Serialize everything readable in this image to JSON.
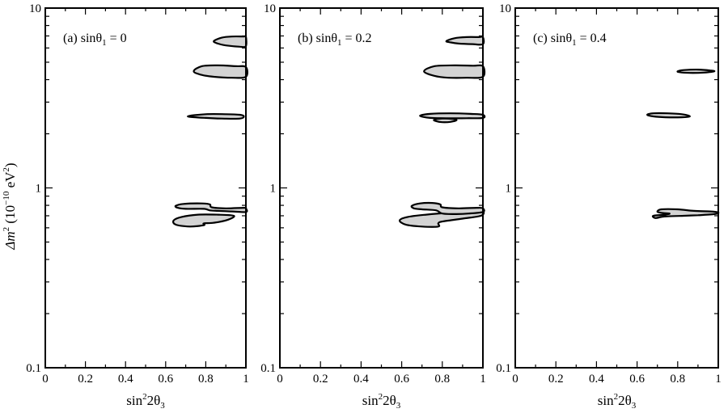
{
  "chart_data": {
    "type": "contour",
    "layout": "three panels side by side sharing y-axis",
    "y_axis": {
      "label_parts": [
        "Δm",
        "2",
        " (10",
        "−10",
        " eV",
        "2",
        ")"
      ],
      "scale": "log",
      "ylim": [
        0.1,
        10
      ],
      "tick_labels": [
        "10",
        "1",
        "0.1"
      ],
      "tick_values": [
        10,
        1,
        0.1
      ]
    },
    "x_axis": {
      "label_parts": [
        "sin",
        "2",
        "2θ",
        "3"
      ],
      "xlim": [
        0,
        1
      ],
      "tick_labels": [
        "0",
        "0.2",
        "0.4",
        "0.6",
        "0.8",
        "1"
      ],
      "tick_values": [
        0,
        0.2,
        0.4,
        0.6,
        0.8,
        1
      ]
    },
    "region_fill": "#d3d3d3",
    "region_stroke": "#000000",
    "panels": [
      {
        "label_prefix": "(a)  sin",
        "label_sub": "θ",
        "label_index": "1",
        "label_suffix": " = 0",
        "regions": [
          [
            [
              0.84,
              6.55
            ],
            [
              0.88,
              6.85
            ],
            [
              0.93,
              6.95
            ],
            [
              0.99,
              6.95
            ],
            [
              1.0,
              6.95
            ],
            [
              1.0,
              6.15
            ],
            [
              0.97,
              6.1
            ],
            [
              0.9,
              6.2
            ],
            [
              0.86,
              6.35
            ]
          ],
          [
            [
              0.74,
              4.45
            ],
            [
              0.78,
              4.75
            ],
            [
              0.86,
              4.8
            ],
            [
              0.95,
              4.75
            ],
            [
              1.0,
              4.7
            ],
            [
              1.0,
              4.15
            ],
            [
              0.93,
              4.1
            ],
            [
              0.84,
              4.15
            ],
            [
              0.78,
              4.25
            ]
          ],
          [
            [
              0.71,
              2.5
            ],
            [
              0.8,
              2.57
            ],
            [
              0.9,
              2.57
            ],
            [
              0.97,
              2.55
            ],
            [
              0.99,
              2.5
            ],
            [
              0.97,
              2.43
            ],
            [
              0.88,
              2.43
            ],
            [
              0.8,
              2.45
            ]
          ],
          [
            [
              0.64,
              0.66
            ],
            [
              0.68,
              0.69
            ],
            [
              0.76,
              0.71
            ],
            [
              0.86,
              0.71
            ],
            [
              0.94,
              0.7
            ],
            [
              0.91,
              0.665
            ],
            [
              0.84,
              0.64
            ],
            [
              0.79,
              0.635
            ],
            [
              0.79,
              0.62
            ],
            [
              0.72,
              0.61
            ],
            [
              0.65,
              0.625
            ]
          ],
          [
            [
              0.65,
              0.795
            ],
            [
              0.69,
              0.815
            ],
            [
              0.78,
              0.82
            ],
            [
              0.82,
              0.81
            ],
            [
              0.83,
              0.78
            ],
            [
              0.9,
              0.77
            ],
            [
              0.99,
              0.775
            ],
            [
              1.0,
              0.77
            ],
            [
              1.0,
              0.735
            ],
            [
              0.93,
              0.74
            ],
            [
              0.86,
              0.745
            ],
            [
              0.82,
              0.75
            ],
            [
              0.79,
              0.765
            ],
            [
              0.7,
              0.765
            ],
            [
              0.66,
              0.775
            ]
          ]
        ]
      },
      {
        "label_prefix": "(b)  sin",
        "label_sub": "θ",
        "label_index": "1",
        "label_suffix": " = 0.2",
        "regions": [
          [
            [
              0.82,
              6.55
            ],
            [
              0.86,
              6.8
            ],
            [
              0.92,
              6.9
            ],
            [
              0.98,
              6.9
            ],
            [
              1.0,
              6.9
            ],
            [
              1.0,
              6.3
            ],
            [
              0.95,
              6.3
            ],
            [
              0.88,
              6.35
            ],
            [
              0.84,
              6.45
            ]
          ],
          [
            [
              0.71,
              4.45
            ],
            [
              0.76,
              4.75
            ],
            [
              0.86,
              4.8
            ],
            [
              0.95,
              4.78
            ],
            [
              1.0,
              4.75
            ],
            [
              1.0,
              4.15
            ],
            [
              0.92,
              4.1
            ],
            [
              0.83,
              4.1
            ],
            [
              0.76,
              4.2
            ]
          ],
          [
            [
              0.69,
              2.52
            ],
            [
              0.74,
              2.58
            ],
            [
              0.84,
              2.6
            ],
            [
              0.94,
              2.58
            ],
            [
              1.0,
              2.55
            ],
            [
              1.0,
              2.45
            ],
            [
              0.92,
              2.44
            ],
            [
              0.82,
              2.44
            ],
            [
              0.74,
              2.45
            ]
          ],
          [
            [
              0.76,
              2.39
            ],
            [
              0.8,
              2.43
            ],
            [
              0.85,
              2.42
            ],
            [
              0.87,
              2.38
            ],
            [
              0.84,
              2.33
            ],
            [
              0.8,
              2.32
            ],
            [
              0.77,
              2.35
            ]
          ],
          [
            [
              0.59,
              0.66
            ],
            [
              0.63,
              0.69
            ],
            [
              0.72,
              0.71
            ],
            [
              0.85,
              0.73
            ],
            [
              0.95,
              0.74
            ],
            [
              1.0,
              0.74
            ],
            [
              0.99,
              0.7
            ],
            [
              0.9,
              0.675
            ],
            [
              0.8,
              0.65
            ],
            [
              0.78,
              0.635
            ],
            [
              0.78,
              0.61
            ],
            [
              0.7,
              0.61
            ],
            [
              0.62,
              0.625
            ]
          ],
          [
            [
              0.65,
              0.795
            ],
            [
              0.69,
              0.82
            ],
            [
              0.75,
              0.825
            ],
            [
              0.79,
              0.81
            ],
            [
              0.8,
              0.78
            ],
            [
              0.88,
              0.77
            ],
            [
              0.97,
              0.775
            ],
            [
              1.0,
              0.77
            ],
            [
              1.0,
              0.735
            ],
            [
              0.93,
              0.72
            ],
            [
              0.87,
              0.715
            ],
            [
              0.8,
              0.72
            ],
            [
              0.77,
              0.75
            ],
            [
              0.7,
              0.76
            ],
            [
              0.66,
              0.77
            ]
          ]
        ]
      },
      {
        "label_prefix": "(c)  sin",
        "label_sub": "θ",
        "label_index": "1",
        "label_suffix": " = 0.4",
        "regions": [
          [
            [
              0.8,
              4.45
            ],
            [
              0.83,
              4.52
            ],
            [
              0.9,
              4.55
            ],
            [
              0.96,
              4.5
            ],
            [
              0.98,
              4.45
            ],
            [
              0.93,
              4.38
            ],
            [
              0.86,
              4.36
            ],
            [
              0.81,
              4.4
            ]
          ],
          [
            [
              0.65,
              2.55
            ],
            [
              0.68,
              2.6
            ],
            [
              0.75,
              2.6
            ],
            [
              0.82,
              2.57
            ],
            [
              0.86,
              2.5
            ],
            [
              0.82,
              2.47
            ],
            [
              0.74,
              2.47
            ],
            [
              0.68,
              2.5
            ]
          ],
          [
            [
              0.7,
              0.74
            ],
            [
              0.72,
              0.76
            ],
            [
              0.8,
              0.76
            ],
            [
              0.88,
              0.745
            ],
            [
              0.96,
              0.74
            ],
            [
              1.0,
              0.73
            ],
            [
              0.98,
              0.715
            ],
            [
              0.9,
              0.705
            ],
            [
              0.83,
              0.7
            ],
            [
              0.75,
              0.695
            ],
            [
              0.72,
              0.69
            ],
            [
              0.69,
              0.68
            ],
            [
              0.68,
              0.7
            ],
            [
              0.74,
              0.71
            ],
            [
              0.76,
              0.72
            ],
            [
              0.73,
              0.725
            ],
            [
              0.71,
              0.73
            ]
          ]
        ]
      }
    ]
  }
}
